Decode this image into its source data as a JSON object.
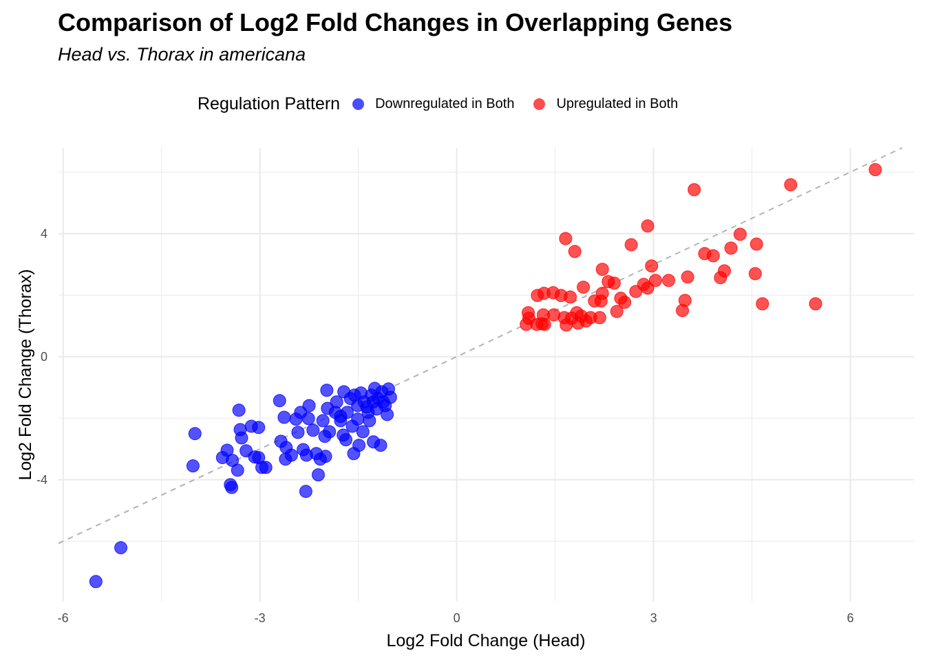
{
  "chart_data": {
    "type": "scatter",
    "title": "Comparison of Log2 Fold Changes in Overlapping Genes",
    "subtitle": "Head vs. Thorax in americana",
    "xlabel": "Log2 Fold Change (Head)",
    "ylabel": "Log2 Fold Change (Thorax)",
    "xlim": [
      -6.07,
      6.97
    ],
    "ylim": [
      -7.96,
      6.79
    ],
    "x_ticks": [
      -6,
      -3,
      0,
      3,
      6
    ],
    "y_ticks": [
      -4,
      0,
      4
    ],
    "grid": true,
    "reference_line": {
      "type": "identity",
      "style": "dashed",
      "color": "#b3b3b3"
    },
    "legend": {
      "title": "Regulation Pattern",
      "placement": "top"
    },
    "series": [
      {
        "name": "Downregulated in Both",
        "color": "#0000ff",
        "points": [
          [
            -5.5,
            -7.31
          ],
          [
            -5.12,
            -6.21
          ],
          [
            -3.99,
            -2.5
          ],
          [
            -4.02,
            -3.55
          ],
          [
            -3.45,
            -4.16
          ],
          [
            -3.43,
            -4.25
          ],
          [
            -3.57,
            -3.28
          ],
          [
            -3.5,
            -3.04
          ],
          [
            -3.42,
            -3.37
          ],
          [
            -3.34,
            -3.69
          ],
          [
            -3.32,
            -1.74
          ],
          [
            -3.3,
            -2.37
          ],
          [
            -3.28,
            -2.64
          ],
          [
            -3.21,
            -3.06
          ],
          [
            -3.13,
            -2.26
          ],
          [
            -3.02,
            -2.3
          ],
          [
            -3.08,
            -3.26
          ],
          [
            -3.02,
            -3.28
          ],
          [
            -2.97,
            -3.6
          ],
          [
            -2.91,
            -3.6
          ],
          [
            -2.7,
            -1.43
          ],
          [
            -2.63,
            -1.97
          ],
          [
            -2.68,
            -2.75
          ],
          [
            -2.61,
            -3.33
          ],
          [
            -2.6,
            -2.95
          ],
          [
            -2.52,
            -3.2
          ],
          [
            -2.45,
            -2.03
          ],
          [
            -2.42,
            -2.46
          ],
          [
            -2.38,
            -1.81
          ],
          [
            -2.3,
            -4.38
          ],
          [
            -2.34,
            -3.02
          ],
          [
            -2.25,
            -1.59
          ],
          [
            -2.26,
            -2.01
          ],
          [
            -2.29,
            -3.2
          ],
          [
            -2.19,
            -2.39
          ],
          [
            -2.14,
            -3.15
          ],
          [
            -2.11,
            -3.84
          ],
          [
            -2.08,
            -3.33
          ],
          [
            -2.04,
            -2.08
          ],
          [
            -2.0,
            -3.24
          ],
          [
            -2.01,
            -2.59
          ],
          [
            -1.97,
            -1.68
          ],
          [
            -1.98,
            -1.09
          ],
          [
            -1.94,
            -2.44
          ],
          [
            -1.83,
            -1.47
          ],
          [
            -1.77,
            -1.94
          ],
          [
            -1.73,
            -2.55
          ],
          [
            -1.69,
            -2.7
          ],
          [
            -1.57,
            -3.15
          ],
          [
            -1.49,
            -2.88
          ],
          [
            -1.27,
            -2.77
          ],
          [
            -1.16,
            -2.88
          ],
          [
            -1.72,
            -1.14
          ],
          [
            -1.62,
            -1.36
          ],
          [
            -1.56,
            -1.25
          ],
          [
            -1.51,
            -1.59
          ],
          [
            -1.46,
            -1.18
          ],
          [
            -1.41,
            -1.47
          ],
          [
            -1.35,
            -1.81
          ],
          [
            -1.3,
            -1.25
          ],
          [
            -1.25,
            -1.03
          ],
          [
            -1.2,
            -1.36
          ],
          [
            -1.14,
            -1.14
          ],
          [
            -1.09,
            -1.59
          ],
          [
            -1.04,
            -1.05
          ],
          [
            -1.01,
            -1.32
          ],
          [
            -1.06,
            -1.88
          ],
          [
            -1.67,
            -1.81
          ],
          [
            -1.77,
            -2.08
          ],
          [
            -1.43,
            -2.44
          ],
          [
            -1.51,
            -2.03
          ],
          [
            -1.37,
            -1.63
          ],
          [
            -1.27,
            -1.47
          ],
          [
            -1.22,
            -1.7
          ],
          [
            -1.12,
            -1.47
          ],
          [
            -1.85,
            -1.81
          ],
          [
            -1.59,
            -2.26
          ],
          [
            -1.33,
            -2.08
          ]
        ]
      },
      {
        "name": "Upregulated in Both",
        "color": "#ff0000",
        "points": [
          [
            6.38,
            6.08
          ],
          [
            5.09,
            5.59
          ],
          [
            3.62,
            5.43
          ],
          [
            2.91,
            4.25
          ],
          [
            1.66,
            3.84
          ],
          [
            1.8,
            3.42
          ],
          [
            2.66,
            3.64
          ],
          [
            4.32,
            3.98
          ],
          [
            4.57,
            3.66
          ],
          [
            3.78,
            3.35
          ],
          [
            3.91,
            3.28
          ],
          [
            4.18,
            3.53
          ],
          [
            2.97,
            2.95
          ],
          [
            2.22,
            2.84
          ],
          [
            4.08,
            2.79
          ],
          [
            4.55,
            2.7
          ],
          [
            3.52,
            2.59
          ],
          [
            4.02,
            2.57
          ],
          [
            3.03,
            2.48
          ],
          [
            3.23,
            2.48
          ],
          [
            2.85,
            2.35
          ],
          [
            2.91,
            2.23
          ],
          [
            2.31,
            2.44
          ],
          [
            2.4,
            2.39
          ],
          [
            1.93,
            2.26
          ],
          [
            2.73,
            2.12
          ],
          [
            2.22,
            2.06
          ],
          [
            1.23,
            1.99
          ],
          [
            1.33,
            2.06
          ],
          [
            1.47,
            2.08
          ],
          [
            1.59,
            1.99
          ],
          [
            1.73,
            1.94
          ],
          [
            2.2,
            1.81
          ],
          [
            2.1,
            1.81
          ],
          [
            2.5,
            1.9
          ],
          [
            2.56,
            1.77
          ],
          [
            3.48,
            1.83
          ],
          [
            4.66,
            1.72
          ],
          [
            5.47,
            1.72
          ],
          [
            3.44,
            1.5
          ],
          [
            2.44,
            1.47
          ],
          [
            1.09,
            1.43
          ],
          [
            1.1,
            1.25
          ],
          [
            1.32,
            1.36
          ],
          [
            1.48,
            1.36
          ],
          [
            1.64,
            1.27
          ],
          [
            1.83,
            1.43
          ],
          [
            2.04,
            1.27
          ],
          [
            2.18,
            1.27
          ],
          [
            1.06,
            1.05
          ],
          [
            1.22,
            1.05
          ],
          [
            1.34,
            1.05
          ],
          [
            1.67,
            1.03
          ],
          [
            1.85,
            1.09
          ],
          [
            1.97,
            1.16
          ],
          [
            1.3,
            1.07
          ],
          [
            1.75,
            1.25
          ],
          [
            1.9,
            1.32
          ]
        ]
      }
    ]
  }
}
